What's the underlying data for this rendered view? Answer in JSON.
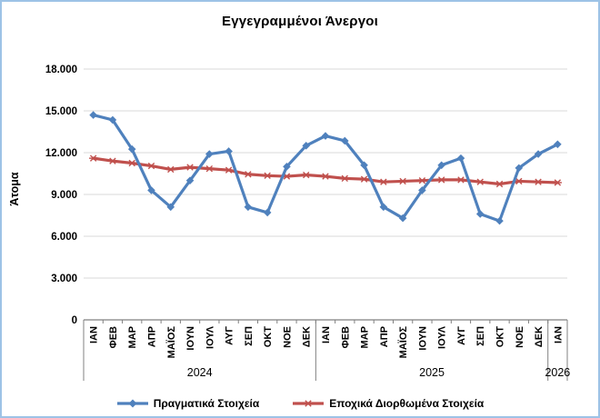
{
  "window": {
    "background": "#FFFFFF",
    "frame_border_color": "#9DC3E6"
  },
  "chart_data": {
    "type": "line",
    "title": "Εγγεγραμμένοι Άνεργοι",
    "xlabel": "",
    "ylabel": "Άτομα",
    "ylim": [
      0,
      18000
    ],
    "yticks": [
      0,
      3000,
      6000,
      9000,
      12000,
      15000,
      18000
    ],
    "ytick_labels": [
      "0",
      "3.000",
      "6.000",
      "9.000",
      "12.000",
      "15.000",
      "18.000"
    ],
    "grid": true,
    "legend_position": "bottom",
    "axis_color": "#808080",
    "gridline_color": "#D9D9D9",
    "categories": [
      "ΙΑΝ",
      "ΦΕΒ",
      "ΜΑΡ",
      "ΑΠΡ",
      "ΜΑΪΟΣ",
      "ΙΟΥΝ",
      "ΙΟΥΛ",
      "ΑΥΓ",
      "ΣΕΠ",
      "ΟΚΤ",
      "ΝΟΕ",
      "ΔΕΚ",
      "ΙΑΝ",
      "ΦΕΒ",
      "ΜΑΡ",
      "ΑΠΡ",
      "ΜΑΪΟΣ",
      "ΙΟΥΝ",
      "ΙΟΥΛ",
      "ΑΥΓ",
      "ΣΕΠ",
      "ΟΚΤ",
      "ΝΟΕ",
      "ΔΕΚ",
      "ΙΑΝ"
    ],
    "year_groups": [
      {
        "label": "2024",
        "start": 0,
        "count": 12
      },
      {
        "label": "2025",
        "start": 12,
        "count": 12
      },
      {
        "label": "2026",
        "start": 24,
        "count": 1
      }
    ],
    "series": [
      {
        "name": "Πραγματικά Στοιχεία",
        "color": "#4F81BD",
        "marker": "diamond",
        "values": [
          14700,
          14350,
          12250,
          9300,
          8100,
          10000,
          11900,
          12100,
          8100,
          7700,
          11000,
          12500,
          13200,
          12850,
          11100,
          8100,
          7300,
          9300,
          11100,
          11600,
          7600,
          7100,
          10900,
          11900,
          12600
        ]
      },
      {
        "name": "Εποχικά Διορθωμένα Στοιχεία",
        "color": "#C0504D",
        "marker": "star",
        "values": [
          11600,
          11400,
          11250,
          11050,
          10800,
          10950,
          10850,
          10750,
          10450,
          10350,
          10300,
          10400,
          10300,
          10150,
          10100,
          9900,
          9950,
          10000,
          10050,
          10050,
          9900,
          9750,
          9950,
          9900,
          9850
        ]
      }
    ]
  }
}
